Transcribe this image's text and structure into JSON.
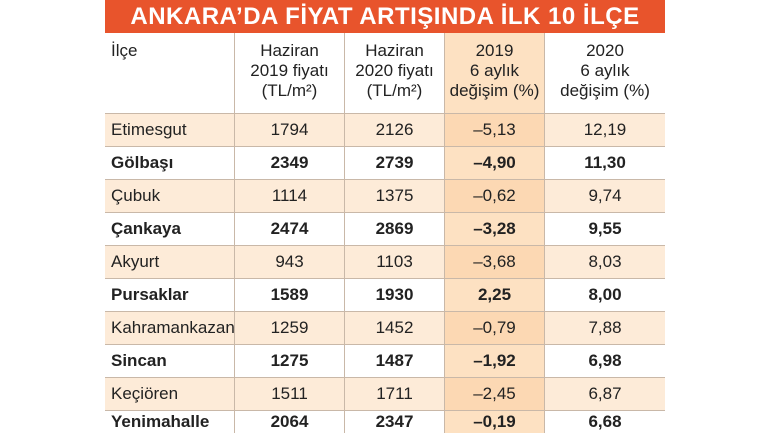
{
  "title": "ANKARA’DA FİYAT ARTIŞINDA İLK 10 İLÇE",
  "table": {
    "header": [
      [
        "İlçe"
      ],
      [
        "Haziran",
        "2019 fiyatı",
        "(TL/m²)"
      ],
      [
        "Haziran",
        "2020 fiyatı",
        "(TL/m²)"
      ],
      [
        "2019",
        "6 aylık",
        "değişim (%)"
      ],
      [
        "2020",
        "6 aylık",
        "değişim (%)"
      ]
    ],
    "rows": [
      [
        "Etimesgut",
        "1794",
        "2126",
        "–5,13",
        "12,19"
      ],
      [
        "Gölbaşı",
        "2349",
        "2739",
        "–4,90",
        "11,30"
      ],
      [
        "Çubuk",
        "1114",
        "1375",
        "–0,62",
        "9,74"
      ],
      [
        "Çankaya",
        "2474",
        "2869",
        "–3,28",
        "9,55"
      ],
      [
        "Akyurt",
        "943",
        "1103",
        "–3,68",
        "8,03"
      ],
      [
        "Pursaklar",
        "1589",
        "1930",
        "2,25",
        "8,00"
      ],
      [
        "Kahramankazan",
        "1259",
        "1452",
        "–0,79",
        "7,88"
      ],
      [
        "Sincan",
        "1275",
        "1487",
        "–1,92",
        "6,98"
      ],
      [
        "Keçiören",
        "1511",
        "1711",
        "–2,45",
        "6,87"
      ],
      [
        "Yenimahalle",
        "2064",
        "2347",
        "–0,19",
        "6,68"
      ]
    ]
  }
}
